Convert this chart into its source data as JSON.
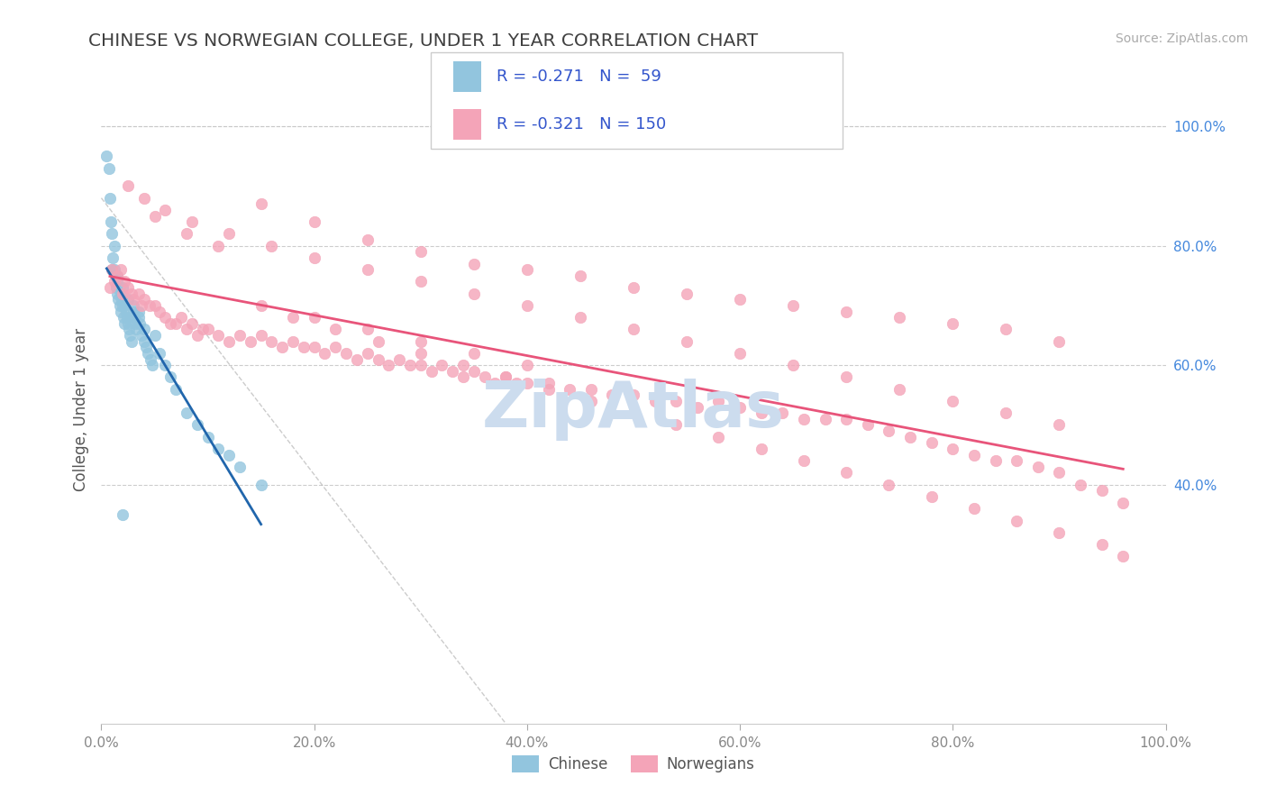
{
  "title": "CHINESE VS NORWEGIAN COLLEGE, UNDER 1 YEAR CORRELATION CHART",
  "source_text": "Source: ZipAtlas.com",
  "ylabel": "College, Under 1 year",
  "xlim": [
    0,
    1
  ],
  "ylim": [
    0,
    1.05
  ],
  "xticks": [
    0.0,
    0.2,
    0.4,
    0.6,
    0.8,
    1.0
  ],
  "xtick_labels": [
    "0.0%",
    "20.0%",
    "40.0%",
    "60.0%",
    "80.0%",
    "100.0%"
  ],
  "yticks_right": [
    0.4,
    0.6,
    0.8,
    1.0
  ],
  "ytick_right_labels": [
    "40.0%",
    "60.0%",
    "80.0%",
    "100.0%"
  ],
  "chinese_R": -0.271,
  "chinese_N": 59,
  "norwegian_R": -0.321,
  "norwegian_N": 150,
  "chinese_color": "#92c5de",
  "norwegian_color": "#f4a4b8",
  "chinese_line_color": "#2166ac",
  "norwegian_line_color": "#e8547a",
  "background_color": "#ffffff",
  "grid_color": "#c8c8c8",
  "title_color": "#404040",
  "axis_color": "#555555",
  "right_tick_color": "#4488dd",
  "bottom_tick_color": "#888888",
  "watermark_color": "#ccdcee",
  "legend_text_color": "#3355cc",
  "source_color": "#aaaaaa",
  "chinese_scatter_x": [
    0.005,
    0.007,
    0.008,
    0.009,
    0.01,
    0.01,
    0.011,
    0.012,
    0.012,
    0.013,
    0.014,
    0.015,
    0.015,
    0.016,
    0.017,
    0.018,
    0.018,
    0.019,
    0.02,
    0.021,
    0.022,
    0.022,
    0.023,
    0.024,
    0.025,
    0.026,
    0.027,
    0.028,
    0.03,
    0.031,
    0.032,
    0.033,
    0.035,
    0.036,
    0.038,
    0.04,
    0.042,
    0.044,
    0.046,
    0.048,
    0.05,
    0.055,
    0.06,
    0.065,
    0.07,
    0.08,
    0.09,
    0.1,
    0.11,
    0.12,
    0.13,
    0.15,
    0.015,
    0.02,
    0.025,
    0.03,
    0.035,
    0.04,
    0.02
  ],
  "chinese_scatter_y": [
    0.95,
    0.93,
    0.88,
    0.84,
    0.76,
    0.82,
    0.78,
    0.76,
    0.8,
    0.75,
    0.73,
    0.72,
    0.74,
    0.71,
    0.7,
    0.69,
    0.72,
    0.71,
    0.7,
    0.68,
    0.67,
    0.7,
    0.69,
    0.68,
    0.67,
    0.66,
    0.65,
    0.64,
    0.7,
    0.68,
    0.67,
    0.66,
    0.69,
    0.67,
    0.65,
    0.64,
    0.63,
    0.62,
    0.61,
    0.6,
    0.65,
    0.62,
    0.6,
    0.58,
    0.56,
    0.52,
    0.5,
    0.48,
    0.46,
    0.45,
    0.43,
    0.4,
    0.75,
    0.73,
    0.71,
    0.69,
    0.68,
    0.66,
    0.35
  ],
  "norwegian_scatter_x": [
    0.008,
    0.01,
    0.012,
    0.015,
    0.018,
    0.02,
    0.022,
    0.025,
    0.028,
    0.03,
    0.035,
    0.038,
    0.04,
    0.045,
    0.05,
    0.055,
    0.06,
    0.065,
    0.07,
    0.075,
    0.08,
    0.085,
    0.09,
    0.095,
    0.1,
    0.11,
    0.12,
    0.13,
    0.14,
    0.15,
    0.16,
    0.17,
    0.18,
    0.19,
    0.2,
    0.21,
    0.22,
    0.23,
    0.24,
    0.25,
    0.26,
    0.27,
    0.28,
    0.29,
    0.3,
    0.31,
    0.32,
    0.33,
    0.34,
    0.35,
    0.36,
    0.37,
    0.38,
    0.39,
    0.4,
    0.42,
    0.44,
    0.46,
    0.48,
    0.5,
    0.52,
    0.54,
    0.56,
    0.58,
    0.6,
    0.62,
    0.64,
    0.66,
    0.68,
    0.7,
    0.72,
    0.74,
    0.76,
    0.78,
    0.8,
    0.82,
    0.84,
    0.86,
    0.88,
    0.9,
    0.92,
    0.94,
    0.96,
    0.05,
    0.08,
    0.11,
    0.15,
    0.2,
    0.25,
    0.3,
    0.35,
    0.4,
    0.45,
    0.5,
    0.55,
    0.6,
    0.65,
    0.7,
    0.75,
    0.8,
    0.85,
    0.9,
    0.025,
    0.04,
    0.06,
    0.085,
    0.12,
    0.16,
    0.2,
    0.25,
    0.3,
    0.35,
    0.4,
    0.45,
    0.5,
    0.55,
    0.6,
    0.65,
    0.7,
    0.75,
    0.8,
    0.85,
    0.9,
    0.18,
    0.22,
    0.26,
    0.3,
    0.34,
    0.38,
    0.42,
    0.46,
    0.5,
    0.54,
    0.58,
    0.62,
    0.66,
    0.7,
    0.74,
    0.78,
    0.82,
    0.86,
    0.9,
    0.94,
    0.96,
    0.15,
    0.2,
    0.25,
    0.3,
    0.35,
    0.4
  ],
  "norwegian_scatter_y": [
    0.73,
    0.76,
    0.74,
    0.75,
    0.76,
    0.72,
    0.74,
    0.73,
    0.72,
    0.71,
    0.72,
    0.7,
    0.71,
    0.7,
    0.7,
    0.69,
    0.68,
    0.67,
    0.67,
    0.68,
    0.66,
    0.67,
    0.65,
    0.66,
    0.66,
    0.65,
    0.64,
    0.65,
    0.64,
    0.65,
    0.64,
    0.63,
    0.64,
    0.63,
    0.63,
    0.62,
    0.63,
    0.62,
    0.61,
    0.62,
    0.61,
    0.6,
    0.61,
    0.6,
    0.6,
    0.59,
    0.6,
    0.59,
    0.58,
    0.59,
    0.58,
    0.57,
    0.58,
    0.57,
    0.57,
    0.57,
    0.56,
    0.56,
    0.55,
    0.55,
    0.54,
    0.54,
    0.53,
    0.54,
    0.53,
    0.52,
    0.52,
    0.51,
    0.51,
    0.51,
    0.5,
    0.49,
    0.48,
    0.47,
    0.46,
    0.45,
    0.44,
    0.44,
    0.43,
    0.42,
    0.4,
    0.39,
    0.37,
    0.85,
    0.82,
    0.8,
    0.87,
    0.84,
    0.81,
    0.79,
    0.77,
    0.76,
    0.75,
    0.73,
    0.72,
    0.71,
    0.7,
    0.69,
    0.68,
    0.67,
    0.66,
    0.64,
    0.9,
    0.88,
    0.86,
    0.84,
    0.82,
    0.8,
    0.78,
    0.76,
    0.74,
    0.72,
    0.7,
    0.68,
    0.66,
    0.64,
    0.62,
    0.6,
    0.58,
    0.56,
    0.54,
    0.52,
    0.5,
    0.68,
    0.66,
    0.64,
    0.62,
    0.6,
    0.58,
    0.56,
    0.54,
    0.52,
    0.5,
    0.48,
    0.46,
    0.44,
    0.42,
    0.4,
    0.38,
    0.36,
    0.34,
    0.32,
    0.3,
    0.28,
    0.7,
    0.68,
    0.66,
    0.64,
    0.62,
    0.6
  ]
}
